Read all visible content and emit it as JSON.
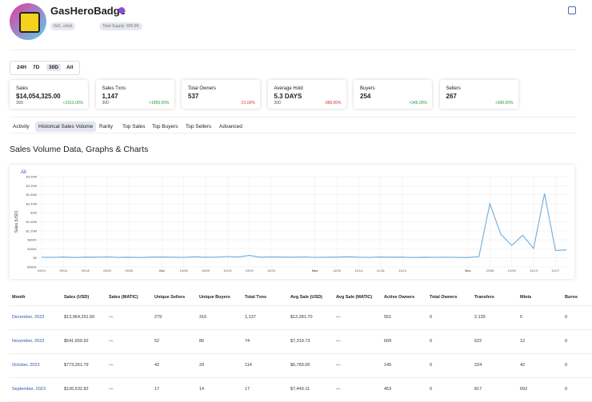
{
  "header": {
    "title": "GasHeroBadge",
    "address": "0x3...e9eb",
    "supply": "Total Supply: 890.9K"
  },
  "time_filters": [
    "24H",
    "7D",
    "30D",
    "All"
  ],
  "stats": [
    {
      "label": "Sales",
      "value": "$14,054,325.00",
      "period": "30D",
      "change": "+1913.00%"
    },
    {
      "label": "Sales Txns",
      "value": "1,147",
      "period": "30D",
      "change": "+1859.00%"
    },
    {
      "label": "Total Owners",
      "value": "537",
      "change": "-21.00%"
    },
    {
      "label": "Average Hold",
      "value": "5.3 DAYS",
      "period": "30D",
      "change": "-388.00%"
    },
    {
      "label": "Buyers",
      "value": "254",
      "change": "+346.00%"
    },
    {
      "label": "Sellers",
      "value": "267",
      "change": "+368.00%"
    }
  ],
  "tabs": [
    "Activity",
    "Historical Sales Volume",
    "Rarity",
    "Top Sales",
    "Top Buyers",
    "Top Sellers",
    "Advanced"
  ],
  "section_title": "Sales Volume Data, Graphs & Charts",
  "chart_data": {
    "type": "line",
    "filter": "All",
    "y_label": "Sales (USD)",
    "color": "#6aaee0",
    "grid": true,
    "categories": [
      "09/10",
      null,
      "09/14",
      null,
      "09/18",
      null,
      "09/22",
      null,
      "09/26",
      null,
      null,
      "Oct",
      null,
      "10/05",
      null,
      "10/09",
      null,
      "10/13",
      null,
      "10/19",
      null,
      "10/24",
      null,
      null,
      null,
      "Nov",
      null,
      "11/05",
      null,
      "11/14",
      null,
      "11/18",
      null,
      "11/24",
      null,
      null,
      null,
      null,
      null,
      "Dec",
      null,
      "12/05",
      null,
      "12/09",
      null,
      "12/13",
      null,
      "12/17",
      null
    ],
    "values": [
      30000,
      25000,
      40000,
      20000,
      35000,
      30000,
      45000,
      25000,
      30000,
      20000,
      35000,
      40000,
      30000,
      25000,
      50000,
      30000,
      35000,
      60000,
      40000,
      110000,
      30000,
      45000,
      35000,
      30000,
      40000,
      25000,
      30000,
      35000,
      50000,
      30000,
      25000,
      40000,
      30000,
      35000,
      20000,
      30000,
      25000,
      30000,
      25000,
      20000,
      60000,
      2400000,
      1050000,
      550000,
      1000000,
      420000,
      2850000,
      330000,
      350000
    ],
    "ylim": [
      -400000,
      3600000
    ],
    "yticks": [
      {
        "value": -400000,
        "label": "-$400K"
      },
      {
        "value": 0,
        "label": "$0"
      },
      {
        "value": 400000,
        "label": "$400K"
      },
      {
        "value": 800000,
        "label": "$800K"
      },
      {
        "value": 1200000,
        "label": "$1.20M"
      },
      {
        "value": 1600000,
        "label": "$1.60M"
      },
      {
        "value": 2000000,
        "label": "$2M"
      },
      {
        "value": 2400000,
        "label": "$2.40M"
      },
      {
        "value": 2800000,
        "label": "$2.80M"
      },
      {
        "value": 3200000,
        "label": "$3.20M"
      },
      {
        "value": 3600000,
        "label": "$3.60M"
      }
    ]
  },
  "table": {
    "columns": [
      "Month",
      "Sales (USD)",
      "Sales (MATIC)",
      "Unique Sellers",
      "Unique Buyers",
      "Total Txns",
      "Avg Sale (USD)",
      "Avg Sale (MATIC)",
      "Active Owners",
      "Total Owners",
      "Transfers",
      "Mints",
      "Burns"
    ],
    "rows": [
      [
        "December, 2023",
        "$13,964,291.50",
        "—",
        "279",
        "316",
        "1,137",
        "$12,281.70",
        "—",
        "551",
        "0",
        "2,135",
        "5",
        "0"
      ],
      [
        "November, 2023",
        "$541,659.92",
        "—",
        "52",
        "86",
        "74",
        "$7,319.73",
        "—",
        "609",
        "0",
        "622",
        "12",
        "0"
      ],
      [
        "October, 2023",
        "$773,261.79",
        "—",
        "42",
        "29",
        "114",
        "$6,783.00",
        "—",
        "145",
        "0",
        "224",
        "42",
        "0"
      ],
      [
        "September, 2023",
        "$126,532.82",
        "—",
        "17",
        "14",
        "17",
        "$7,443.11",
        "—",
        "453",
        "0",
        "817",
        "692",
        "0"
      ]
    ]
  }
}
